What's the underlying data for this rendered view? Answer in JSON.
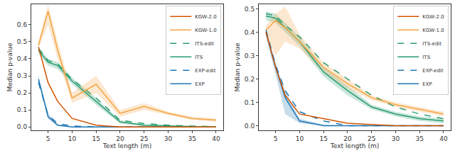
{
  "chart_data": [
    {
      "type": "line",
      "x_label": "Text length (m)",
      "y_label": "Median p-value",
      "x": [
        3,
        5,
        7,
        10,
        15,
        20,
        25,
        30,
        35,
        40
      ],
      "xlim": [
        1.5,
        41.5
      ],
      "xticks": [
        5,
        10,
        15,
        20,
        25,
        30,
        35,
        40
      ],
      "ylim": [
        -0.02,
        0.72
      ],
      "yticks": [
        {
          "value": 0,
          "label": "0.0"
        },
        0.1,
        0.2,
        0.3,
        0.4,
        0.5,
        0.6
      ],
      "grid": false,
      "legend": "upper right",
      "series": [
        {
          "name": "EXP",
          "color": "#1f77b4",
          "line_style": "solid",
          "values": [
            0.28,
            0.06,
            0.01,
            0.0,
            0.0,
            0.0,
            0.0,
            0.0,
            0.0,
            0.0
          ],
          "lower": [
            0.26,
            0.05,
            0.005,
            0.0,
            0.0,
            0.0,
            0.0,
            0.0,
            0.0,
            0.0
          ],
          "upper": [
            0.3,
            0.08,
            0.015,
            0.003,
            0.0,
            0.0,
            0.0,
            0.0,
            0.0,
            0.0
          ]
        },
        {
          "name": "EXP-edit",
          "color": "#1f77b4",
          "line_style": "dashed",
          "values": [
            0.26,
            0.07,
            0.02,
            0.005,
            0.0,
            0.0,
            0.0,
            0.0,
            0.0,
            0.0
          ]
        },
        {
          "name": "ITS",
          "color": "#2a9d6f",
          "line_style": "solid",
          "values": [
            0.45,
            0.38,
            0.36,
            0.27,
            0.15,
            0.03,
            0.01,
            0.005,
            0.002,
            0.0
          ],
          "lower": [
            0.43,
            0.36,
            0.34,
            0.25,
            0.13,
            0.02,
            0.005,
            0.0,
            0.0,
            0.0
          ],
          "upper": [
            0.47,
            0.4,
            0.38,
            0.29,
            0.17,
            0.04,
            0.015,
            0.01,
            0.005,
            0.002
          ]
        },
        {
          "name": "ITS-edit",
          "color": "#2a9d6f",
          "line_style": "dashed",
          "values": [
            0.46,
            0.39,
            0.37,
            0.28,
            0.17,
            0.04,
            0.02,
            0.01,
            0.005,
            0.002
          ]
        },
        {
          "name": "KGW-1.0",
          "color": "#f5a442",
          "line_style": "solid",
          "values": [
            0.48,
            0.68,
            0.45,
            0.17,
            0.25,
            0.08,
            0.12,
            0.08,
            0.05,
            0.04
          ],
          "lower": [
            0.46,
            0.6,
            0.4,
            0.14,
            0.2,
            0.06,
            0.1,
            0.07,
            0.04,
            0.03
          ],
          "upper": [
            0.5,
            0.72,
            0.5,
            0.2,
            0.3,
            0.1,
            0.14,
            0.09,
            0.06,
            0.05
          ]
        },
        {
          "name": "KGW-2.0",
          "color": "#d35400",
          "line_style": "solid",
          "values": [
            0.47,
            0.26,
            0.15,
            0.05,
            0.01,
            0.0,
            0.0,
            0.0,
            0.0,
            0.0
          ]
        }
      ]
    },
    {
      "type": "line",
      "x_label": "Text length (m)",
      "y_label": "Median p-value",
      "x": [
        3,
        5,
        7,
        10,
        15,
        20,
        25,
        30,
        35,
        40
      ],
      "xlim": [
        1.5,
        41.5
      ],
      "xticks": [
        5,
        10,
        15,
        20,
        25,
        30,
        35,
        40
      ],
      "ylim": [
        -0.02,
        0.52
      ],
      "yticks": [
        {
          "value": 0,
          "label": "0.0"
        },
        0.1,
        0.2,
        0.3,
        0.4,
        0.5
      ],
      "grid": false,
      "legend": "upper right",
      "series": [
        {
          "name": "EXP",
          "color": "#1f77b4",
          "line_style": "solid",
          "values": [
            0.4,
            0.25,
            0.12,
            0.02,
            0.0,
            0.0,
            0.0,
            0.0,
            0.0,
            0.0
          ],
          "lower": [
            0.38,
            0.22,
            0.05,
            0.01,
            0.0,
            0.0,
            0.0,
            0.0,
            0.0,
            0.0
          ],
          "upper": [
            0.42,
            0.27,
            0.15,
            0.03,
            0.005,
            0.0,
            0.0,
            0.0,
            0.0,
            0.0
          ]
        },
        {
          "name": "EXP-edit",
          "color": "#1f77b4",
          "line_style": "dashed",
          "values": [
            0.41,
            0.26,
            0.15,
            0.06,
            0.02,
            0.0,
            0.0,
            0.0,
            0.0,
            0.0
          ]
        },
        {
          "name": "ITS",
          "color": "#2a9d6f",
          "line_style": "solid",
          "values": [
            0.47,
            0.46,
            0.42,
            0.36,
            0.23,
            0.15,
            0.08,
            0.05,
            0.03,
            0.02
          ],
          "lower": [
            0.45,
            0.44,
            0.4,
            0.34,
            0.21,
            0.13,
            0.07,
            0.04,
            0.02,
            0.01
          ],
          "upper": [
            0.49,
            0.48,
            0.44,
            0.38,
            0.25,
            0.17,
            0.09,
            0.06,
            0.04,
            0.03
          ]
        },
        {
          "name": "ITS-edit",
          "color": "#2a9d6f",
          "line_style": "dashed",
          "values": [
            0.48,
            0.47,
            0.43,
            0.38,
            0.27,
            0.2,
            0.13,
            0.08,
            0.05,
            0.03
          ]
        },
        {
          "name": "KGW-1.0",
          "color": "#f5a442",
          "line_style": "solid",
          "values": [
            0.41,
            0.45,
            0.42,
            0.36,
            0.25,
            0.18,
            0.12,
            0.09,
            0.07,
            0.05
          ],
          "lower": [
            0.39,
            0.3,
            0.36,
            0.33,
            0.23,
            0.16,
            0.11,
            0.08,
            0.06,
            0.04
          ],
          "upper": [
            0.43,
            0.48,
            0.51,
            0.39,
            0.27,
            0.2,
            0.13,
            0.1,
            0.08,
            0.06
          ]
        },
        {
          "name": "KGW-2.0",
          "color": "#d35400",
          "line_style": "solid",
          "values": [
            0.4,
            0.25,
            0.13,
            0.05,
            0.03,
            0.01,
            0.005,
            0.0,
            0.0,
            0.0
          ]
        }
      ]
    }
  ]
}
